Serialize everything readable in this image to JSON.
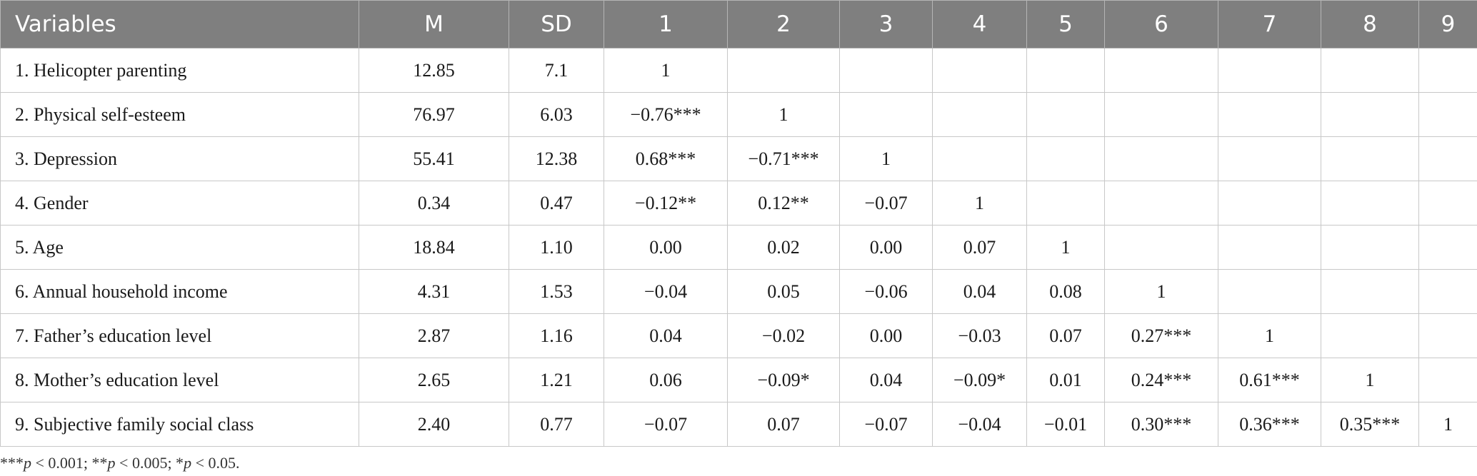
{
  "table": {
    "headers": [
      "Variables",
      "M",
      "SD",
      "1",
      "2",
      "3",
      "4",
      "5",
      "6",
      "7",
      "8",
      "9"
    ],
    "rows": [
      {
        "variable": "1. Helicopter parenting",
        "m": "12.85",
        "sd": "7.1",
        "values": [
          "1",
          "",
          "",
          "",
          "",
          "",
          "",
          "",
          ""
        ]
      },
      {
        "variable": "2. Physical self-esteem",
        "m": "76.97",
        "sd": "6.03",
        "values": [
          "−0.76***",
          "1",
          "",
          "",
          "",
          "",
          "",
          "",
          ""
        ]
      },
      {
        "variable": "3. Depression",
        "m": "55.41",
        "sd": "12.38",
        "values": [
          "0.68***",
          "−0.71***",
          "1",
          "",
          "",
          "",
          "",
          "",
          ""
        ]
      },
      {
        "variable": "4. Gender",
        "m": "0.34",
        "sd": "0.47",
        "values": [
          "−0.12**",
          "0.12**",
          "−0.07",
          "1",
          "",
          "",
          "",
          "",
          ""
        ]
      },
      {
        "variable": "5. Age",
        "m": "18.84",
        "sd": "1.10",
        "values": [
          "0.00",
          "0.02",
          "0.00",
          "0.07",
          "1",
          "",
          "",
          "",
          ""
        ]
      },
      {
        "variable": "6. Annual household income",
        "m": "4.31",
        "sd": "1.53",
        "values": [
          "−0.04",
          "0.05",
          "−0.06",
          "0.04",
          "0.08",
          "1",
          "",
          "",
          ""
        ]
      },
      {
        "variable": "7. Father’s education level",
        "m": "2.87",
        "sd": "1.16",
        "values": [
          "0.04",
          "−0.02",
          "0.00",
          "−0.03",
          "0.07",
          "0.27***",
          "1",
          "",
          ""
        ]
      },
      {
        "variable": "8. Mother’s education level",
        "m": "2.65",
        "sd": "1.21",
        "values": [
          "0.06",
          "−0.09*",
          "0.04",
          "−0.09*",
          "0.01",
          "0.24***",
          "0.61***",
          "1",
          ""
        ]
      },
      {
        "variable": "9. Subjective family social class",
        "m": "2.40",
        "sd": "0.77",
        "values": [
          "−0.07",
          "0.07",
          "−0.07",
          "−0.04",
          "−0.01",
          "0.30***",
          "0.36***",
          "0.35***",
          "1"
        ]
      }
    ]
  },
  "footnote": {
    "parts": [
      {
        "text": "***",
        "italic": false
      },
      {
        "text": "p",
        "italic": true
      },
      {
        "text": " < 0.001; **",
        "italic": false
      },
      {
        "text": "p",
        "italic": true
      },
      {
        "text": " < 0.005; *",
        "italic": false
      },
      {
        "text": "p",
        "italic": true
      },
      {
        "text": " < 0.05.",
        "italic": false
      }
    ]
  }
}
